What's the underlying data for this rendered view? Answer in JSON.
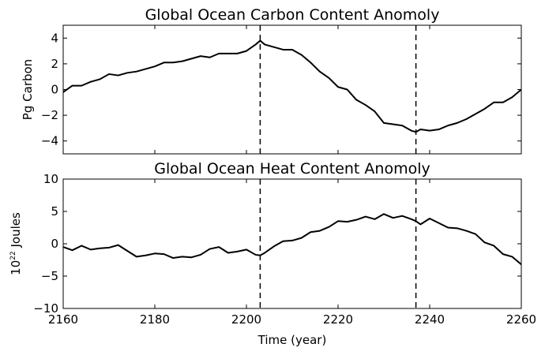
{
  "chart_data": [
    {
      "type": "line",
      "title": "Global Ocean Carbon Content Anomoly",
      "ylabel": "Pg Carbon",
      "xlim": [
        2160,
        2260
      ],
      "ylim": [
        -5,
        5
      ],
      "yticks": [
        4,
        2,
        0,
        -2,
        -4
      ],
      "xticks": [
        2160,
        2180,
        2200,
        2220,
        2240,
        2260
      ],
      "show_xtick_labels": false,
      "vlines": [
        2203,
        2237
      ],
      "series": [
        {
          "color": "#000000",
          "x": [
            2160,
            2162,
            2164,
            2166,
            2168,
            2170,
            2172,
            2174,
            2176,
            2178,
            2180,
            2182,
            2184,
            2186,
            2188,
            2190,
            2192,
            2194,
            2196,
            2198,
            2200,
            2202,
            2203,
            2204,
            2206,
            2208,
            2210,
            2212,
            2214,
            2216,
            2218,
            2220,
            2222,
            2224,
            2226,
            2228,
            2230,
            2232,
            2234,
            2236,
            2237,
            2238,
            2240,
            2242,
            2244,
            2246,
            2248,
            2250,
            2252,
            2254,
            2256,
            2258,
            2260
          ],
          "y": [
            -0.2,
            0.3,
            0.3,
            0.6,
            0.8,
            1.2,
            1.1,
            1.3,
            1.4,
            1.6,
            1.8,
            2.1,
            2.1,
            2.2,
            2.4,
            2.6,
            2.5,
            2.8,
            2.8,
            2.8,
            3.0,
            3.5,
            3.8,
            3.5,
            3.3,
            3.1,
            3.1,
            2.7,
            2.1,
            1.4,
            0.9,
            0.2,
            0.0,
            -0.8,
            -1.2,
            -1.7,
            -2.6,
            -2.7,
            -2.8,
            -3.2,
            -3.3,
            -3.1,
            -3.2,
            -3.1,
            -2.8,
            -2.6,
            -2.3,
            -1.9,
            -1.5,
            -1.0,
            -1.0,
            -0.6,
            0.0
          ]
        }
      ]
    },
    {
      "type": "line",
      "title": "Global Ocean Heat Content Anomoly",
      "ylabel_base": "10",
      "ylabel_exp": "22",
      "ylabel_unit": "Joules",
      "xlabel": "Time (year)",
      "xlim": [
        2160,
        2260
      ],
      "ylim": [
        -10,
        10
      ],
      "yticks": [
        10,
        5,
        0,
        -5,
        -10
      ],
      "xticks": [
        2160,
        2180,
        2200,
        2220,
        2240,
        2260
      ],
      "show_xtick_labels": true,
      "vlines": [
        2203,
        2237
      ],
      "series": [
        {
          "color": "#000000",
          "x": [
            2160,
            2162,
            2164,
            2166,
            2168,
            2170,
            2172,
            2174,
            2176,
            2178,
            2180,
            2182,
            2184,
            2186,
            2188,
            2190,
            2192,
            2194,
            2196,
            2198,
            2200,
            2202,
            2203,
            2204,
            2206,
            2208,
            2210,
            2212,
            2214,
            2216,
            2218,
            2220,
            2222,
            2224,
            2226,
            2228,
            2230,
            2232,
            2234,
            2236,
            2237,
            2238,
            2240,
            2242,
            2244,
            2246,
            2248,
            2250,
            2252,
            2254,
            2256,
            2258,
            2260
          ],
          "y": [
            -0.5,
            -1.0,
            -0.3,
            -0.9,
            -0.7,
            -0.6,
            -0.2,
            -1.1,
            -2.0,
            -1.8,
            -1.5,
            -1.6,
            -2.2,
            -2.0,
            -2.1,
            -1.7,
            -0.8,
            -0.5,
            -1.4,
            -1.2,
            -0.9,
            -1.7,
            -1.8,
            -1.4,
            -0.4,
            0.4,
            0.5,
            0.9,
            1.8,
            2.0,
            2.6,
            3.5,
            3.4,
            3.7,
            4.2,
            3.8,
            4.6,
            4.0,
            4.3,
            3.8,
            3.5,
            3.0,
            3.9,
            3.2,
            2.5,
            2.4,
            2.0,
            1.5,
            0.2,
            -0.3,
            -1.6,
            -2.0,
            -3.2
          ]
        }
      ]
    }
  ]
}
